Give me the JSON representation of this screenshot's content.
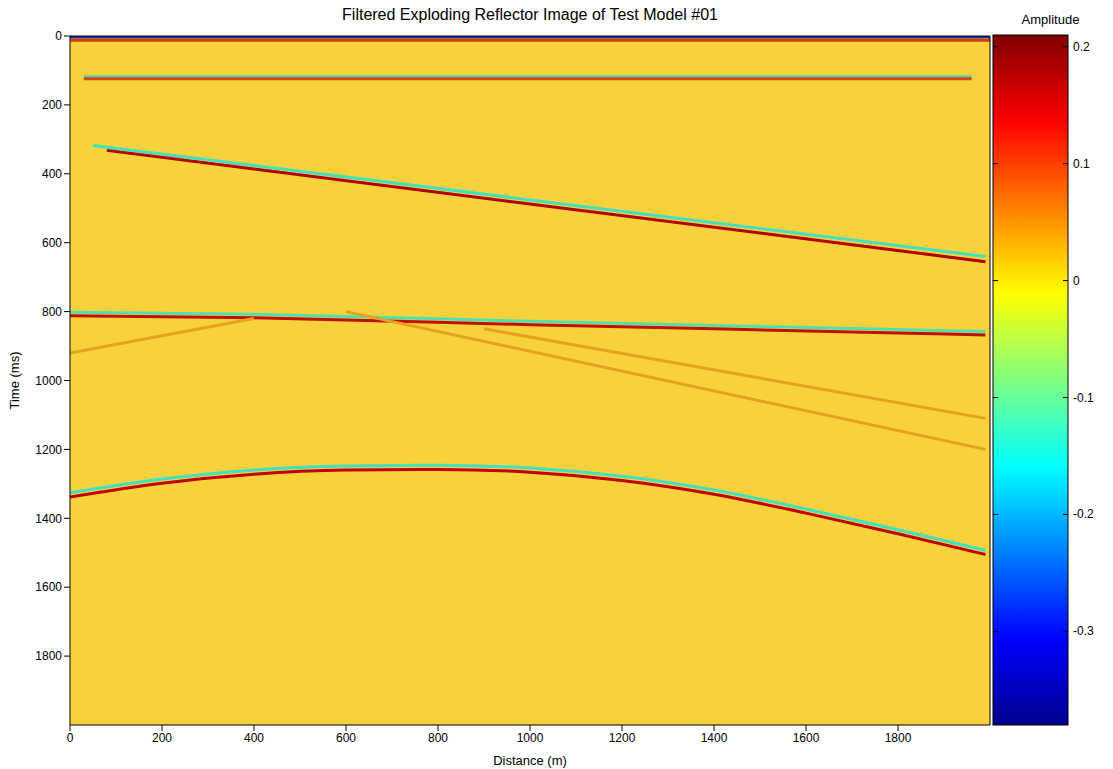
{
  "chart_data": {
    "type": "line",
    "title": "Filtered Exploding Reflector Image of Test Model #01",
    "x_label": "Distance (m)",
    "y_label": "Time (ms)",
    "xlim": [
      0,
      2000
    ],
    "xticks": [
      0,
      200,
      400,
      600,
      800,
      1000,
      1200,
      1400,
      1600,
      1800
    ],
    "ylim": [
      0,
      2000
    ],
    "yticks": [
      0,
      200,
      400,
      600,
      800,
      1000,
      1200,
      1400,
      1600,
      1800
    ],
    "grid": false,
    "colorbar": {
      "label": "Amplitude",
      "range": [
        -0.38,
        0.21
      ],
      "ticks": [
        -0.3,
        -0.2,
        -0.1,
        0,
        0.1,
        0.2
      ]
    },
    "series": [
      {
        "color": "#1030b0",
        "x": [
          0,
          2000
        ],
        "values": [
          3,
          3
        ]
      },
      {
        "color": "#d83a10",
        "x": [
          0,
          2000
        ],
        "values": [
          12,
          12
        ]
      },
      {
        "color": "#40e0b0",
        "x": [
          30,
          1960
        ],
        "values": [
          118,
          118
        ]
      },
      {
        "color": "#e04010",
        "x": [
          30,
          1960
        ],
        "values": [
          124,
          124
        ]
      },
      {
        "color": "#40e0c0",
        "x": [
          50,
          1990
        ],
        "values": [
          318,
          640
        ]
      },
      {
        "color": "#b00000",
        "x": [
          80,
          1990
        ],
        "values": [
          332,
          655
        ]
      },
      {
        "color": "#50e0b0",
        "x": [
          0,
          400,
          1000,
          1800,
          1990
        ],
        "values": [
          802,
          808,
          828,
          852,
          858
        ]
      },
      {
        "color": "#c01000",
        "x": [
          0,
          400,
          1000,
          1800,
          1990
        ],
        "values": [
          812,
          818,
          838,
          862,
          868
        ]
      },
      {
        "color": "#e8a020",
        "x": [
          600,
          1990
        ],
        "values": [
          800,
          1200
        ]
      },
      {
        "color": "#e8a020",
        "x": [
          0,
          400
        ],
        "values": [
          920,
          820
        ]
      },
      {
        "color": "#e8a020",
        "x": [
          900,
          1990
        ],
        "values": [
          850,
          1110
        ]
      },
      {
        "color": "#40e0c0",
        "x": [
          0,
          200,
          400,
          600,
          800,
          1000,
          1200,
          1400,
          1600,
          1800,
          1990
        ],
        "values": [
          1326,
          1286,
          1260,
          1248,
          1246,
          1254,
          1278,
          1318,
          1373,
          1433,
          1493
        ]
      },
      {
        "color": "#c00000",
        "x": [
          0,
          200,
          400,
          600,
          800,
          1000,
          1200,
          1400,
          1600,
          1800,
          1990
        ],
        "values": [
          1338,
          1298,
          1272,
          1260,
          1258,
          1266,
          1290,
          1330,
          1385,
          1445,
          1505
        ]
      }
    ]
  }
}
